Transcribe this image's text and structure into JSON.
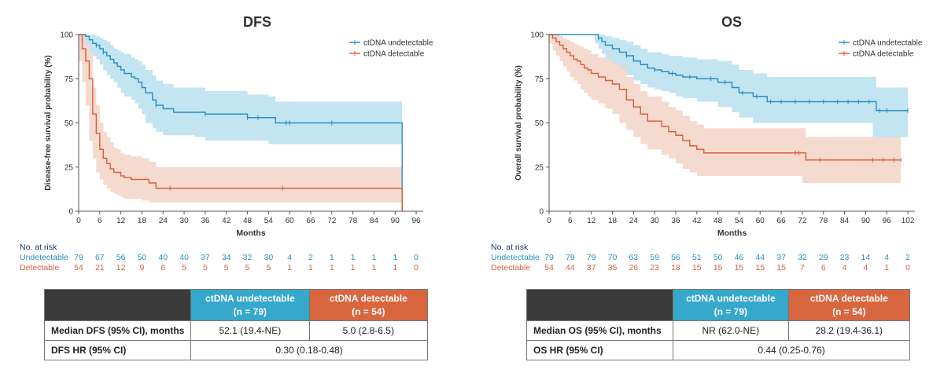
{
  "colors": {
    "undetectable": "#2b8fc2",
    "undetectable_band": "#b9dfee",
    "detectable": "#d8603a",
    "detectable_band": "#f3d3c7",
    "header_dark": "#3a3a3a"
  },
  "chart_data": [
    {
      "id": "dfs",
      "type": "line",
      "title": "DFS",
      "xlabel": "Months",
      "ylabel": "Disease-free survival probability (%)",
      "xlim": [
        0,
        98
      ],
      "ylim": [
        0,
        100
      ],
      "xticks": [
        0,
        6,
        12,
        18,
        24,
        30,
        36,
        42,
        48,
        54,
        60,
        66,
        72,
        78,
        84,
        90,
        96
      ],
      "yticks": [
        0,
        25,
        50,
        75,
        100
      ],
      "legend": "top-right",
      "series": [
        {
          "name": "ctDNA undetectable",
          "color": "#2b8fc2",
          "x": [
            0,
            2,
            3,
            4,
            5,
            6,
            7,
            8,
            9,
            10,
            11,
            12,
            13,
            15,
            16,
            17,
            18,
            19,
            21,
            22,
            24,
            27,
            30,
            33,
            36,
            48,
            54,
            56,
            60,
            66,
            70,
            80,
            92,
            92
          ],
          "y": [
            100,
            99,
            97,
            95,
            94,
            92,
            90,
            88,
            86,
            84,
            82,
            80,
            78,
            76,
            75,
            73,
            70,
            67,
            63,
            60,
            58,
            56,
            56,
            56,
            55,
            53,
            53,
            50,
            50,
            50,
            50,
            50,
            50,
            0
          ],
          "upper": [
            100,
            100,
            100,
            100,
            99,
            98,
            97,
            96,
            94,
            92,
            91,
            90,
            89,
            87,
            86,
            85,
            83,
            80,
            77,
            74,
            72,
            70,
            70,
            70,
            68,
            66,
            65,
            62,
            62,
            62,
            62,
            62,
            62,
            62
          ],
          "lower": [
            100,
            96,
            93,
            90,
            88,
            86,
            83,
            80,
            77,
            75,
            73,
            70,
            67,
            65,
            63,
            61,
            58,
            55,
            50,
            47,
            45,
            43,
            43,
            43,
            42,
            40,
            40,
            38,
            38,
            38,
            38,
            38,
            38,
            38
          ],
          "censor_x": [
            5,
            7,
            22,
            36,
            48,
            51,
            59,
            60,
            72
          ],
          "censor_y": [
            94,
            90,
            60,
            55,
            53,
            53,
            50,
            50,
            50
          ]
        },
        {
          "name": "ctDNA detectable",
          "color": "#d8603a",
          "x": [
            0,
            1,
            2,
            3,
            4,
            5,
            6,
            7,
            8,
            9,
            10,
            11,
            12,
            13,
            15,
            18,
            20,
            22,
            24,
            26,
            92,
            92
          ],
          "y": [
            100,
            92,
            85,
            75,
            55,
            44,
            35,
            30,
            27,
            24,
            22,
            22,
            20,
            19,
            18,
            18,
            16,
            13,
            13,
            13,
            13,
            0
          ],
          "upper": [
            100,
            98,
            95,
            90,
            70,
            60,
            50,
            45,
            42,
            39,
            36,
            35,
            33,
            32,
            31,
            30,
            28,
            25,
            25,
            25,
            25,
            25
          ],
          "lower": [
            100,
            85,
            73,
            60,
            40,
            30,
            22,
            18,
            15,
            13,
            11,
            10,
            9,
            8,
            7,
            7,
            6,
            5,
            5,
            5,
            5,
            5
          ],
          "censor_x": [
            26,
            58
          ],
          "censor_y": [
            13,
            13
          ]
        }
      ]
    },
    {
      "id": "os",
      "type": "line",
      "title": "OS",
      "xlabel": "Months",
      "ylabel": "Overall survival probability (%)",
      "xlim": [
        0,
        104
      ],
      "ylim": [
        0,
        100
      ],
      "xticks": [
        0,
        6,
        12,
        18,
        24,
        30,
        36,
        42,
        48,
        54,
        60,
        66,
        72,
        78,
        84,
        90,
        96,
        102
      ],
      "yticks": [
        0,
        25,
        50,
        75,
        100
      ],
      "legend": "top-right",
      "series": [
        {
          "name": "ctDNA undetectable",
          "color": "#2b8fc2",
          "x": [
            0,
            13,
            14,
            15,
            16,
            18,
            20,
            22,
            24,
            26,
            28,
            30,
            32,
            34,
            36,
            38,
            42,
            48,
            52,
            54,
            58,
            62,
            92,
            93,
            102
          ],
          "y": [
            100,
            100,
            98,
            96,
            94,
            92,
            90,
            88,
            85,
            83,
            81,
            80,
            79,
            78,
            77,
            76,
            75,
            73,
            70,
            67,
            65,
            62,
            62,
            57,
            57
          ],
          "upper": [
            100,
            100,
            100,
            100,
            99,
            98,
            97,
            96,
            94,
            92,
            90,
            90,
            89,
            88,
            88,
            87,
            86,
            85,
            83,
            80,
            78,
            76,
            76,
            70,
            70
          ],
          "lower": [
            100,
            100,
            95,
            92,
            89,
            86,
            83,
            80,
            77,
            74,
            72,
            70,
            69,
            68,
            67,
            65,
            64,
            62,
            59,
            56,
            53,
            50,
            50,
            42,
            42
          ],
          "censor_x": [
            14,
            22,
            30,
            35,
            40,
            46,
            50,
            55,
            59,
            63,
            66,
            70,
            74,
            78,
            82,
            85,
            88,
            91,
            94,
            96,
            102
          ],
          "censor_y": [
            98,
            88,
            80,
            78,
            76,
            75,
            73,
            67,
            65,
            62,
            62,
            62,
            62,
            62,
            62,
            62,
            62,
            62,
            57,
            57,
            57
          ]
        },
        {
          "name": "ctDNA detectable",
          "color": "#d8603a",
          "x": [
            0,
            1,
            2,
            3,
            4,
            5,
            6,
            7,
            8,
            9,
            10,
            11,
            12,
            14,
            16,
            18,
            20,
            22,
            24,
            26,
            28,
            32,
            34,
            36,
            38,
            40,
            42,
            44,
            72,
            73,
            100
          ],
          "y": [
            100,
            98,
            96,
            94,
            92,
            90,
            88,
            86,
            85,
            83,
            81,
            80,
            78,
            76,
            74,
            72,
            69,
            63,
            59,
            55,
            51,
            48,
            45,
            43,
            40,
            37,
            35,
            33,
            33,
            29,
            29
          ],
          "upper": [
            100,
            100,
            100,
            99,
            98,
            97,
            96,
            95,
            94,
            93,
            92,
            91,
            89,
            87,
            86,
            84,
            82,
            76,
            72,
            68,
            65,
            62,
            59,
            57,
            54,
            51,
            49,
            47,
            47,
            42,
            42
          ],
          "lower": [
            100,
            95,
            91,
            88,
            85,
            82,
            79,
            76,
            74,
            72,
            69,
            67,
            65,
            63,
            61,
            58,
            55,
            50,
            46,
            42,
            38,
            35,
            32,
            30,
            27,
            24,
            22,
            20,
            20,
            16,
            16
          ],
          "censor_x": [
            70,
            71,
            77,
            92,
            95,
            98,
            100
          ],
          "censor_y": [
            33,
            33,
            29,
            29,
            29,
            29,
            29
          ]
        }
      ]
    }
  ],
  "risk_tables": [
    {
      "header": "No. at risk",
      "undetectable_label": "Undetectable",
      "detectable_label": "Detectable",
      "undetectable": [
        "79",
        "67",
        "56",
        "50",
        "40",
        "40",
        "37",
        "34",
        "32",
        "30",
        "4",
        "2",
        "1",
        "1",
        "1",
        "1",
        "0"
      ],
      "detectable": [
        "54",
        "21",
        "12",
        "9",
        "6",
        "5",
        "5",
        "5",
        "5",
        "5",
        "1",
        "1",
        "1",
        "1",
        "1",
        "1",
        "0"
      ]
    },
    {
      "header": "No. at risk",
      "undetectable_label": "Undetectable",
      "detectable_label": "Detectable",
      "undetectable": [
        "79",
        "79",
        "79",
        "70",
        "63",
        "59",
        "56",
        "51",
        "50",
        "46",
        "44",
        "37",
        "32",
        "29",
        "23",
        "14",
        "4",
        "2"
      ],
      "detectable": [
        "54",
        "44",
        "37",
        "35",
        "26",
        "23",
        "18",
        "15",
        "15",
        "15",
        "15",
        "15",
        "7",
        "6",
        "4",
        "4",
        "1",
        "0"
      ]
    }
  ],
  "summary_tables": [
    {
      "undetectable_header": "ctDNA undetectable",
      "undetectable_n": "(n = 79)",
      "detectable_header": "ctDNA detectable",
      "detectable_n": "(n = 54)",
      "median_label": "Median DFS (95% CI), months",
      "median_undetectable": "52.1 (19.4-NE)",
      "median_detectable": "5.0 (2.8-6.5)",
      "hr_label": "DFS HR (95% CI)",
      "hr_value": "0.30 (0.18-0.48)"
    },
    {
      "undetectable_header": "ctDNA undetectable",
      "undetectable_n": "(n = 79)",
      "detectable_header": "ctDNA detectable",
      "detectable_n": "(n = 54)",
      "median_label": "Median OS (95% CI), months",
      "median_undetectable": "NR (62.0-NE)",
      "median_detectable": "28.2 (19.4-36.1)",
      "hr_label": "OS HR (95% CI)",
      "hr_value": "0.44 (0.25-0.76)"
    }
  ]
}
